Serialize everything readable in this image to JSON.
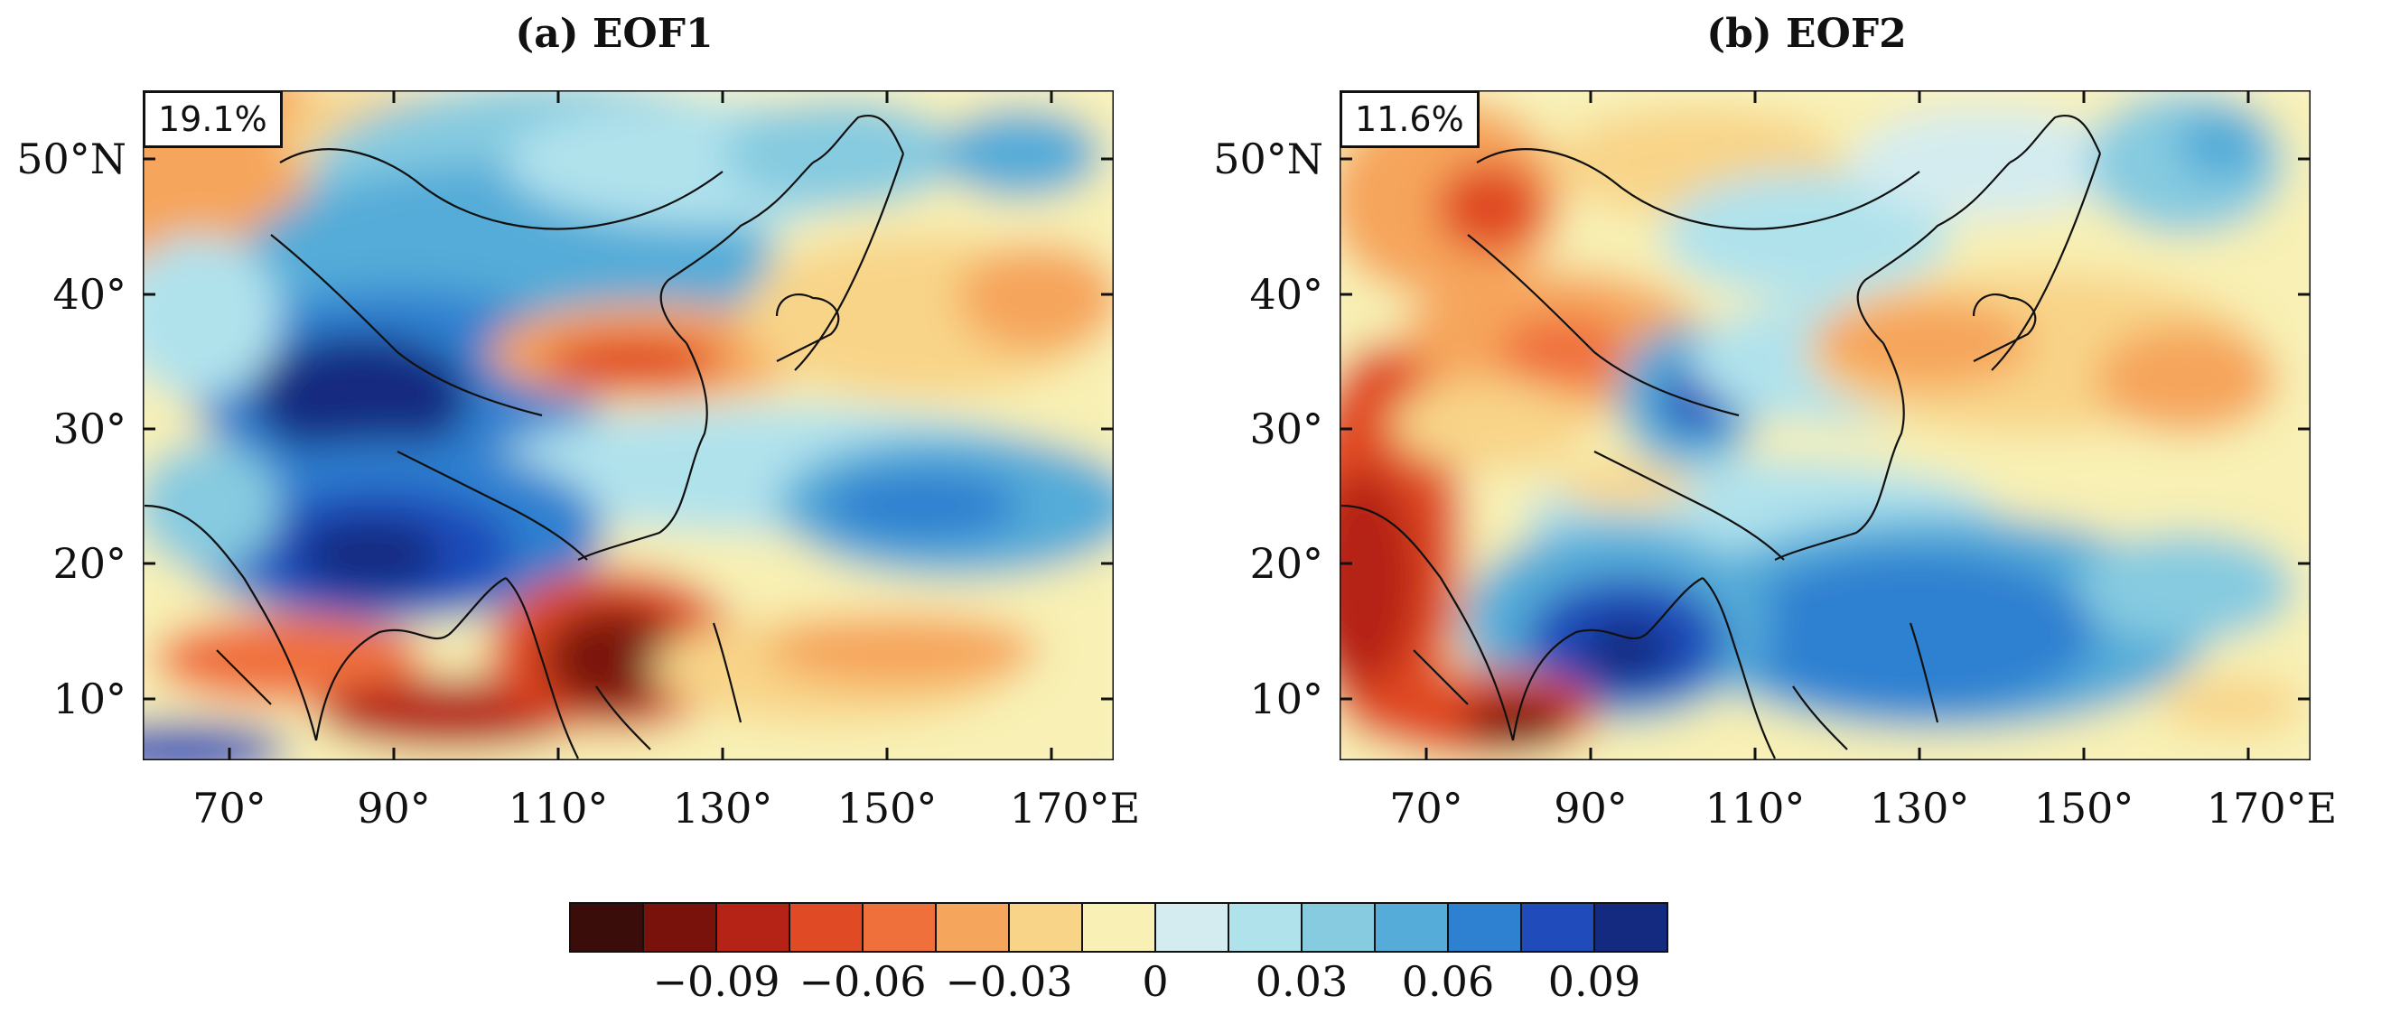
{
  "panels": [
    {
      "title": "(a) EOF1",
      "variance": "19.1%",
      "lat_labels": [
        "50°N",
        "40°",
        "30°",
        "20°",
        "10°"
      ],
      "lon_labels": [
        "70°",
        "90°",
        "110°",
        "130°",
        "150°",
        "170°E"
      ]
    },
    {
      "title": "(b) EOF2",
      "variance": "11.6%",
      "lat_labels": [
        "50°N",
        "40°",
        "30°",
        "20°",
        "10°"
      ],
      "lon_labels": [
        "70°",
        "90°",
        "110°",
        "130°",
        "150°",
        "170°E"
      ]
    }
  ],
  "colorbar": {
    "colors": [
      "#3b0d0a",
      "#7a120c",
      "#b52317",
      "#e04a24",
      "#f0703c",
      "#f6a55c",
      "#f8d488",
      "#f8f0b4",
      "#d4ecf0",
      "#b0e2ec",
      "#86cbe0",
      "#55acd8",
      "#2e80d0",
      "#1f4cba",
      "#142a80"
    ],
    "tick_labels": [
      "−0.09",
      "−0.06",
      "−0.03",
      "0",
      "0.03",
      "0.06",
      "0.09"
    ]
  }
}
